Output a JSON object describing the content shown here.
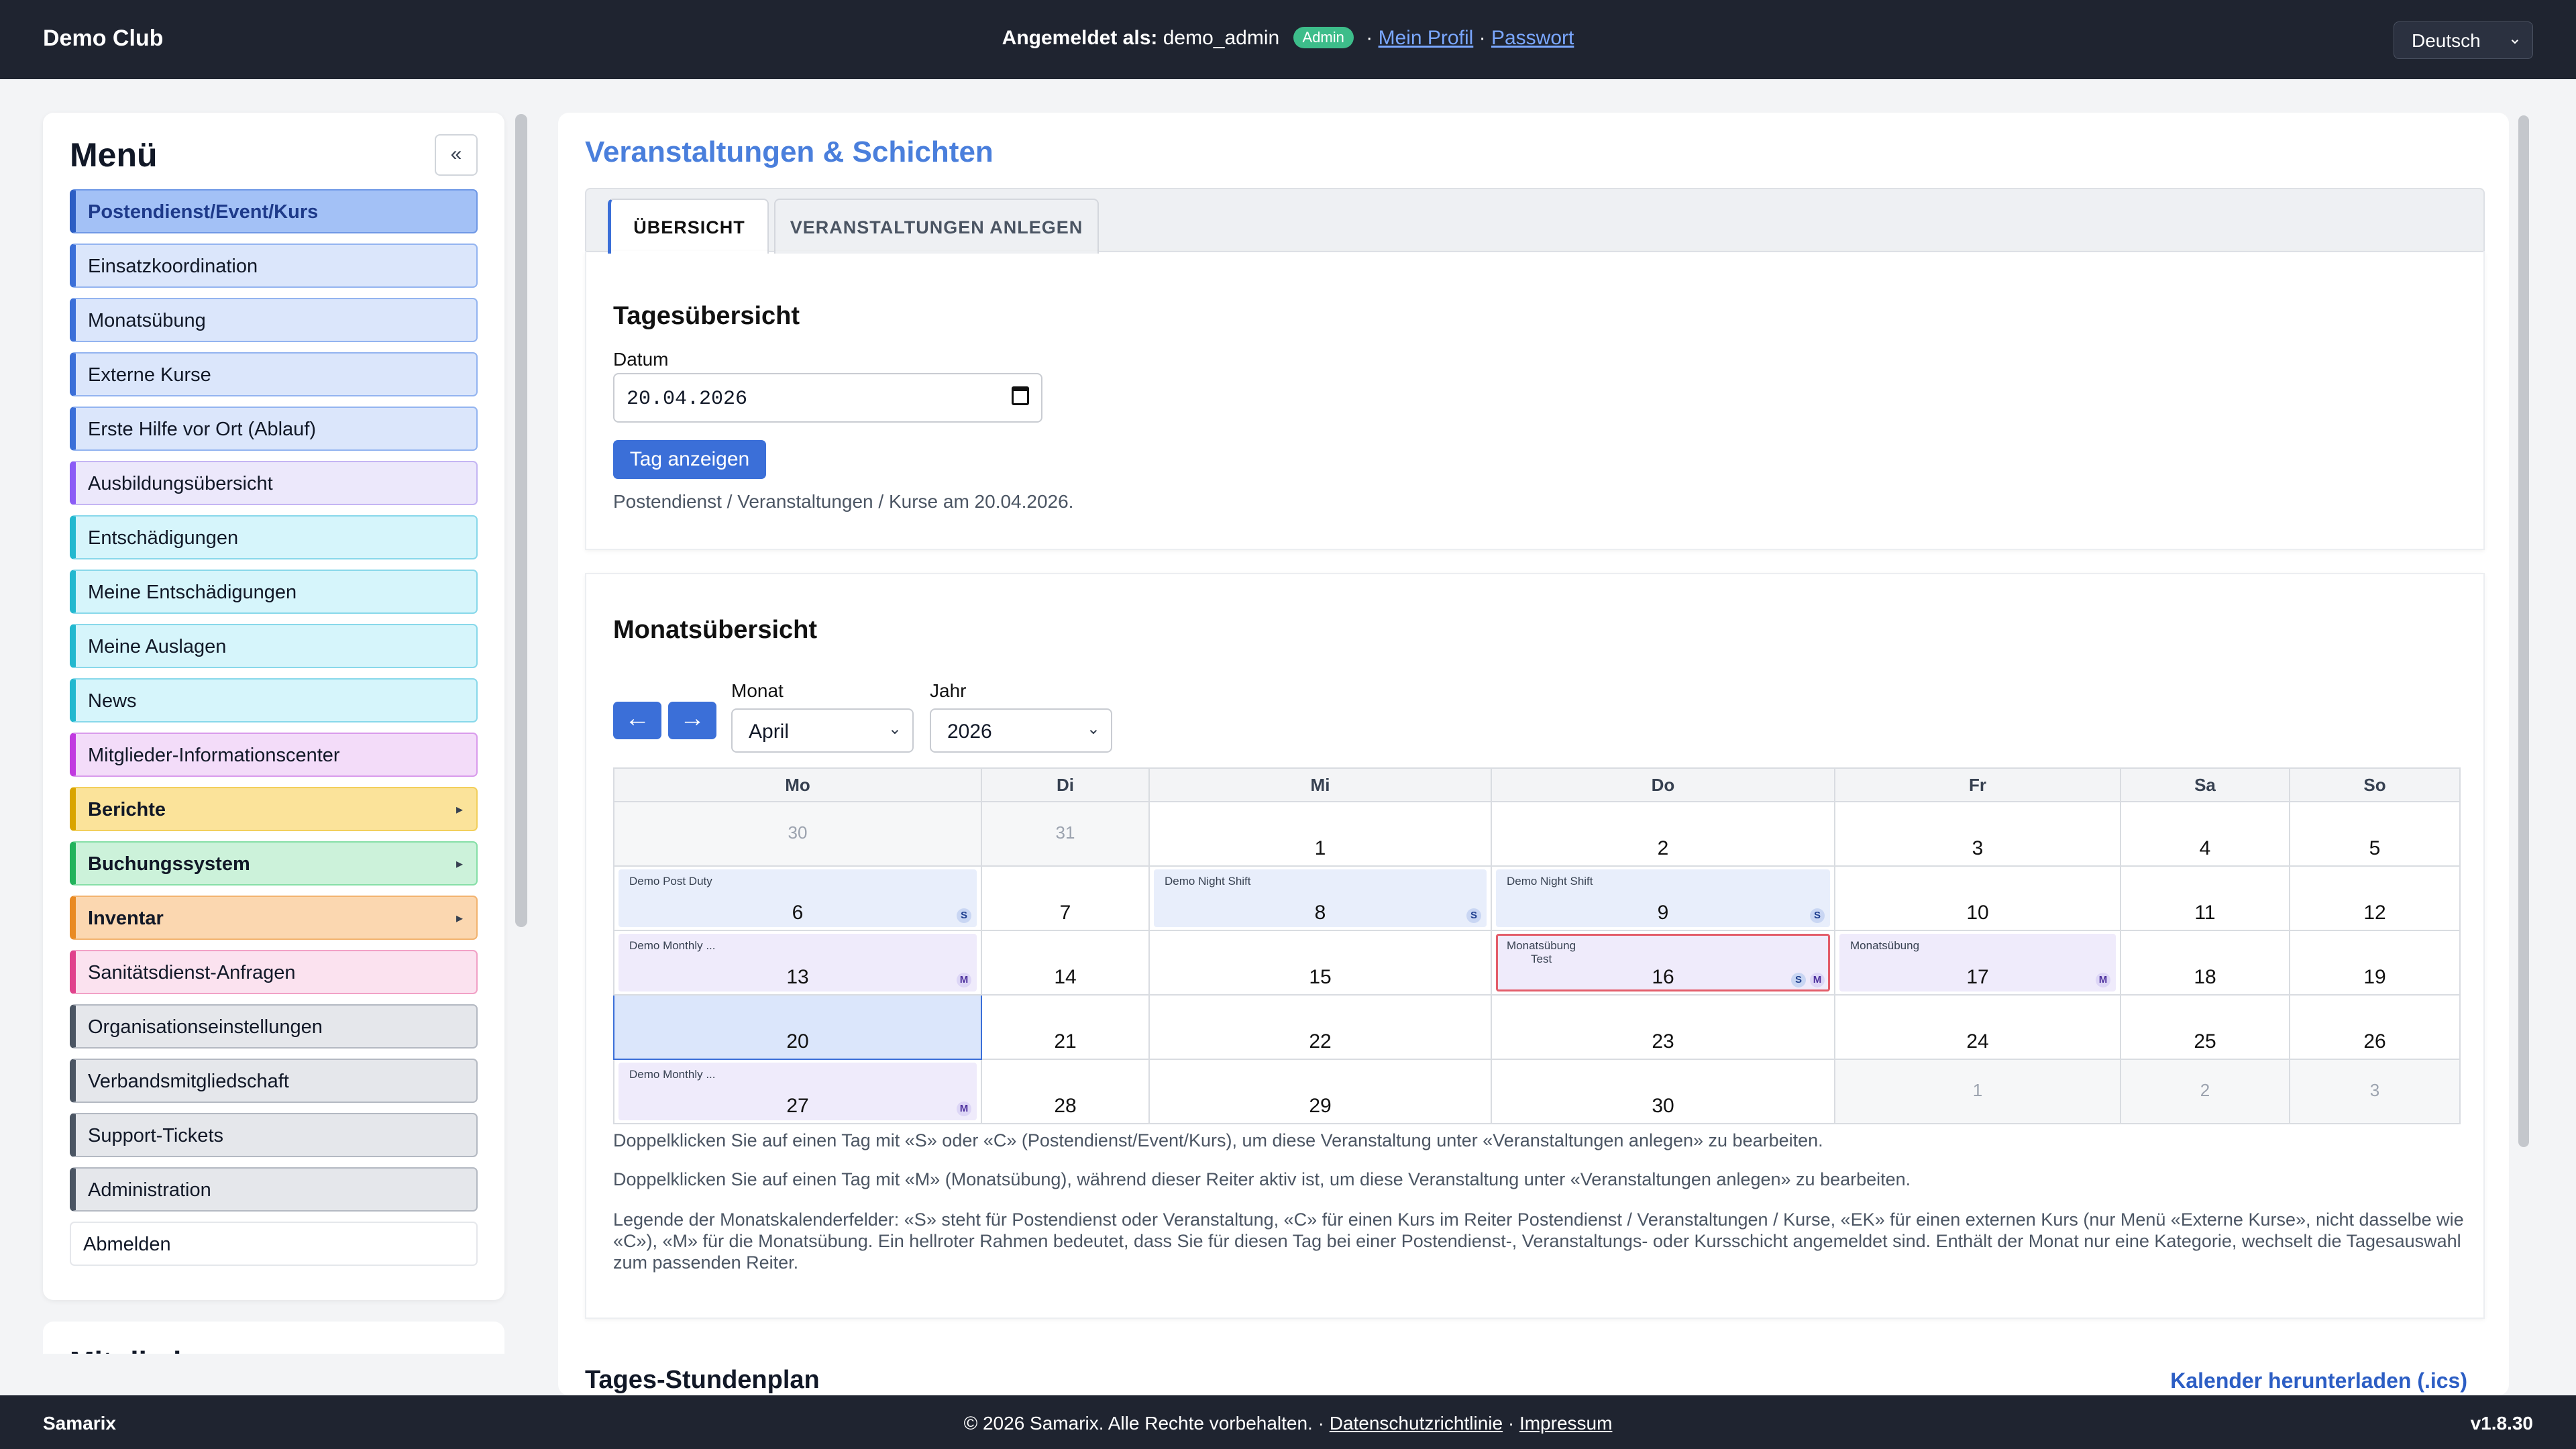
{
  "header": {
    "brand": "Demo Club",
    "logged_in_label": "Angemeldet als:",
    "username": "demo_admin",
    "role_badge": "Admin",
    "separator": "·",
    "profile_link": "Mein Profil",
    "password_link": "Passwort",
    "language": "Deutsch"
  },
  "sidebar": {
    "title": "Menü",
    "collapse_label": "«",
    "items": [
      {
        "label": "Postendienst/Event/Kurs"
      },
      {
        "label": "Einsatzkoordination"
      },
      {
        "label": "Monatsübung"
      },
      {
        "label": "Externe Kurse"
      },
      {
        "label": "Erste Hilfe vor Ort (Ablauf)"
      },
      {
        "label": "Ausbildungsübersicht"
      },
      {
        "label": "Entschädigungen"
      },
      {
        "label": "Meine Entschädigungen"
      },
      {
        "label": "Meine Auslagen"
      },
      {
        "label": "News"
      },
      {
        "label": "Mitglieder-Informationscenter"
      },
      {
        "label": "Berichte"
      },
      {
        "label": "Buchungssystem"
      },
      {
        "label": "Inventar"
      },
      {
        "label": "Sanitätsdienst-Anfragen"
      },
      {
        "label": "Organisationseinstellungen"
      },
      {
        "label": "Verbandsmitgliedschaft"
      },
      {
        "label": "Support-Tickets"
      },
      {
        "label": "Administration"
      },
      {
        "label": "Abmelden"
      }
    ],
    "expand_arrow": "▸",
    "second_card_title": "Mitglieder"
  },
  "main": {
    "title": "Veranstaltungen & Schichten",
    "tabs": [
      "ÜBERSICHT",
      "VERANSTALTUNGEN ANLEGEN"
    ],
    "daily": {
      "heading": "Tagesübersicht",
      "date_label": "Datum",
      "date_value": "20.04.2026",
      "show_button": "Tag anzeigen",
      "result_text": "Postendienst / Veranstaltungen / Kurse am 20.04.2026."
    },
    "monthly": {
      "heading": "Monatsübersicht",
      "prev": "←",
      "next": "→",
      "month_label": "Monat",
      "month_value": "April",
      "year_label": "Jahr",
      "year_value": "2026",
      "weekdays": [
        "Mo",
        "Di",
        "Mi",
        "Do",
        "Fr",
        "Sa",
        "So"
      ],
      "days": {
        "d30p": "30",
        "d31p": "31",
        "d1": "1",
        "d2": "2",
        "d3": "3",
        "d4": "4",
        "d5": "5",
        "d6": "6",
        "d7": "7",
        "d8": "8",
        "d9": "9",
        "d10": "10",
        "d11": "11",
        "d12": "12",
        "d13": "13",
        "d14": "14",
        "d15": "15",
        "d16": "16",
        "d17": "17",
        "d18": "18",
        "d19": "19",
        "d20": "20",
        "d21": "21",
        "d22": "22",
        "d23": "23",
        "d24": "24",
        "d25": "25",
        "d26": "26",
        "d27": "27",
        "d28": "28",
        "d29": "29",
        "d30": "30",
        "n1": "1",
        "n2": "2",
        "n3": "3"
      },
      "events": {
        "e6": "Demo Post Duty",
        "e8": "Demo Night Shift",
        "e9": "Demo Night Shift",
        "e13": "Demo Monthly ...",
        "e16a": "Monatsübung",
        "e16b": "Test",
        "e17": "Monatsübung",
        "e27": "Demo Monthly ..."
      },
      "tags": {
        "s": "S",
        "m": "M"
      },
      "help1": "Doppelklicken Sie auf einen Tag mit «S» oder «C» (Postendienst/Event/Kurs), um diese Veranstaltung unter «Veranstaltungen anlegen» zu bearbeiten.",
      "help2": "Doppelklicken Sie auf einen Tag mit «M» (Monatsübung), während dieser Reiter aktiv ist, um diese Veranstaltung unter «Veranstaltungen anlegen» zu bearbeiten.",
      "help3": "Legende der Monatskalenderfelder: «S» steht für Postendienst oder Veranstaltung, «C» für einen Kurs im Reiter Postendienst / Veranstaltungen / Kurse, «EK» für einen externen Kurs (nur Menü «Externe Kurse», nicht dasselbe wie «C»), «M» für die Monatsübung. Ein hellroter Rahmen bedeutet, dass Sie für diesen Tag bei einer Postendienst-, Veranstaltungs- oder Kursschicht angemeldet sind. Enthält der Monat nur eine Kategorie, wechselt die Tagesauswahl zum passenden Reiter."
    },
    "schedule_heading": "Tages-Stundenplan",
    "ics_link": "Kalender herunterladen (.ics)"
  },
  "footer": {
    "left": "Samarix",
    "copyright": "© 2026 Samarix. Alle Rechte vorbehalten. ·",
    "privacy": "Datenschutzrichtlinie",
    "dot": "·",
    "imprint": "Impressum",
    "version": "v1.8.30"
  },
  "colors": {
    "accent": "#3b6fd8",
    "title_blue": "#4a7fdc",
    "topbar": "#1f2430",
    "badge_green": "#3dbd8a",
    "registered_frame": "#e35d6a"
  }
}
